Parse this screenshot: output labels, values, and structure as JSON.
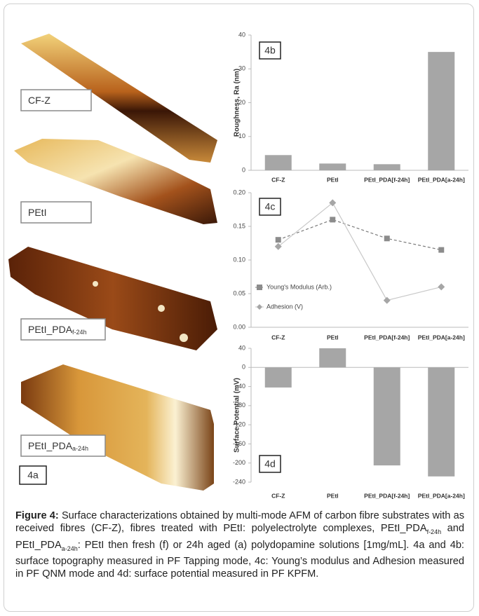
{
  "chart_data": [
    {
      "type": "bar",
      "panel_label": "4b",
      "y_label": "Roughness, Ra (nm)",
      "categories": [
        "CF-Z",
        "PEtI",
        "PEtI_PDA[f-24h]",
        "PEtI_PDA[a-24h]"
      ],
      "values": [
        4.5,
        2.0,
        1.8,
        35
      ],
      "color": "#a6a6a6",
      "ylim": [
        0,
        40
      ],
      "yticks": [
        0,
        10,
        20,
        30,
        40
      ],
      "grid": false
    },
    {
      "type": "line",
      "panel_label": "4c",
      "categories": [
        "CF-Z",
        "PEtI",
        "PEtI_PDA[f-24h]",
        "PEtI_PDA[a-24h]"
      ],
      "series": [
        {
          "name": "Young's Modulus (Arb.)",
          "color": "#8c8c8c",
          "line_color": "#7a7a7a",
          "dashed": true,
          "marker": "square",
          "values": [
            0.13,
            0.16,
            0.132,
            0.115
          ]
        },
        {
          "name": "Adhesion (V)",
          "color": "#a6a6a6",
          "line_color": "#c8c8c8",
          "dashed": false,
          "marker": "diamond",
          "values": [
            0.12,
            0.185,
            0.04,
            0.06
          ]
        }
      ],
      "ylim": [
        0,
        0.2
      ],
      "yticks": [
        {
          "value": 0,
          "label": "0.00"
        },
        0.05,
        {
          "value": 0.1,
          "label": "0.10"
        },
        0.15,
        {
          "value": 0.2,
          "label": "0.20"
        }
      ],
      "grid": false,
      "legend": "lower left"
    },
    {
      "type": "bar",
      "panel_label": "4d",
      "y_label": "Surface Potential (mV)",
      "categories": [
        "CF-Z",
        "PEtI",
        "PEtI_PDA[f-24h]",
        "PEtI_PDA[a-24h]"
      ],
      "values": [
        -42,
        40,
        -205,
        -228
      ],
      "color": "#a6a6a6",
      "ylim": [
        -240,
        40
      ],
      "yticks": [
        40,
        0,
        -40,
        -80,
        -120,
        -160,
        -200,
        -240
      ],
      "grid": false
    }
  ],
  "afm_panels": [
    {
      "label": "CF-Z"
    },
    {
      "label": "PEtI"
    },
    {
      "label": "PEtI_PDA",
      "subscript": "f-24h"
    },
    {
      "label": "PEtI_PDA",
      "subscript": "a-24h"
    }
  ],
  "afm_tag": "4a",
  "caption": {
    "parts": [
      {
        "text": "Figure 4:",
        "bold": true
      },
      {
        "text": " Surface characterizations obtained by multi-mode AFM of carbon fibre substrates with as received fibres (CF-Z), fibres treated with PEtI: polyelectrolyte complexes, PEtI_PDA"
      },
      {
        "text": "f-24h",
        "sub": true
      },
      {
        "text": " and PEtI_PDA"
      },
      {
        "text": "a-24h",
        "sub": true
      },
      {
        "text": ": PEtI then fresh (f) or 24h aged (a) polydopamine solutions [1mg/mL]. 4a and 4b: surface topography measured in PF Tapping mode, 4c: Young’s modulus and Adhesion measured in PF QNM mode and 4d: surface potential measured in PF KPFM."
      }
    ]
  }
}
